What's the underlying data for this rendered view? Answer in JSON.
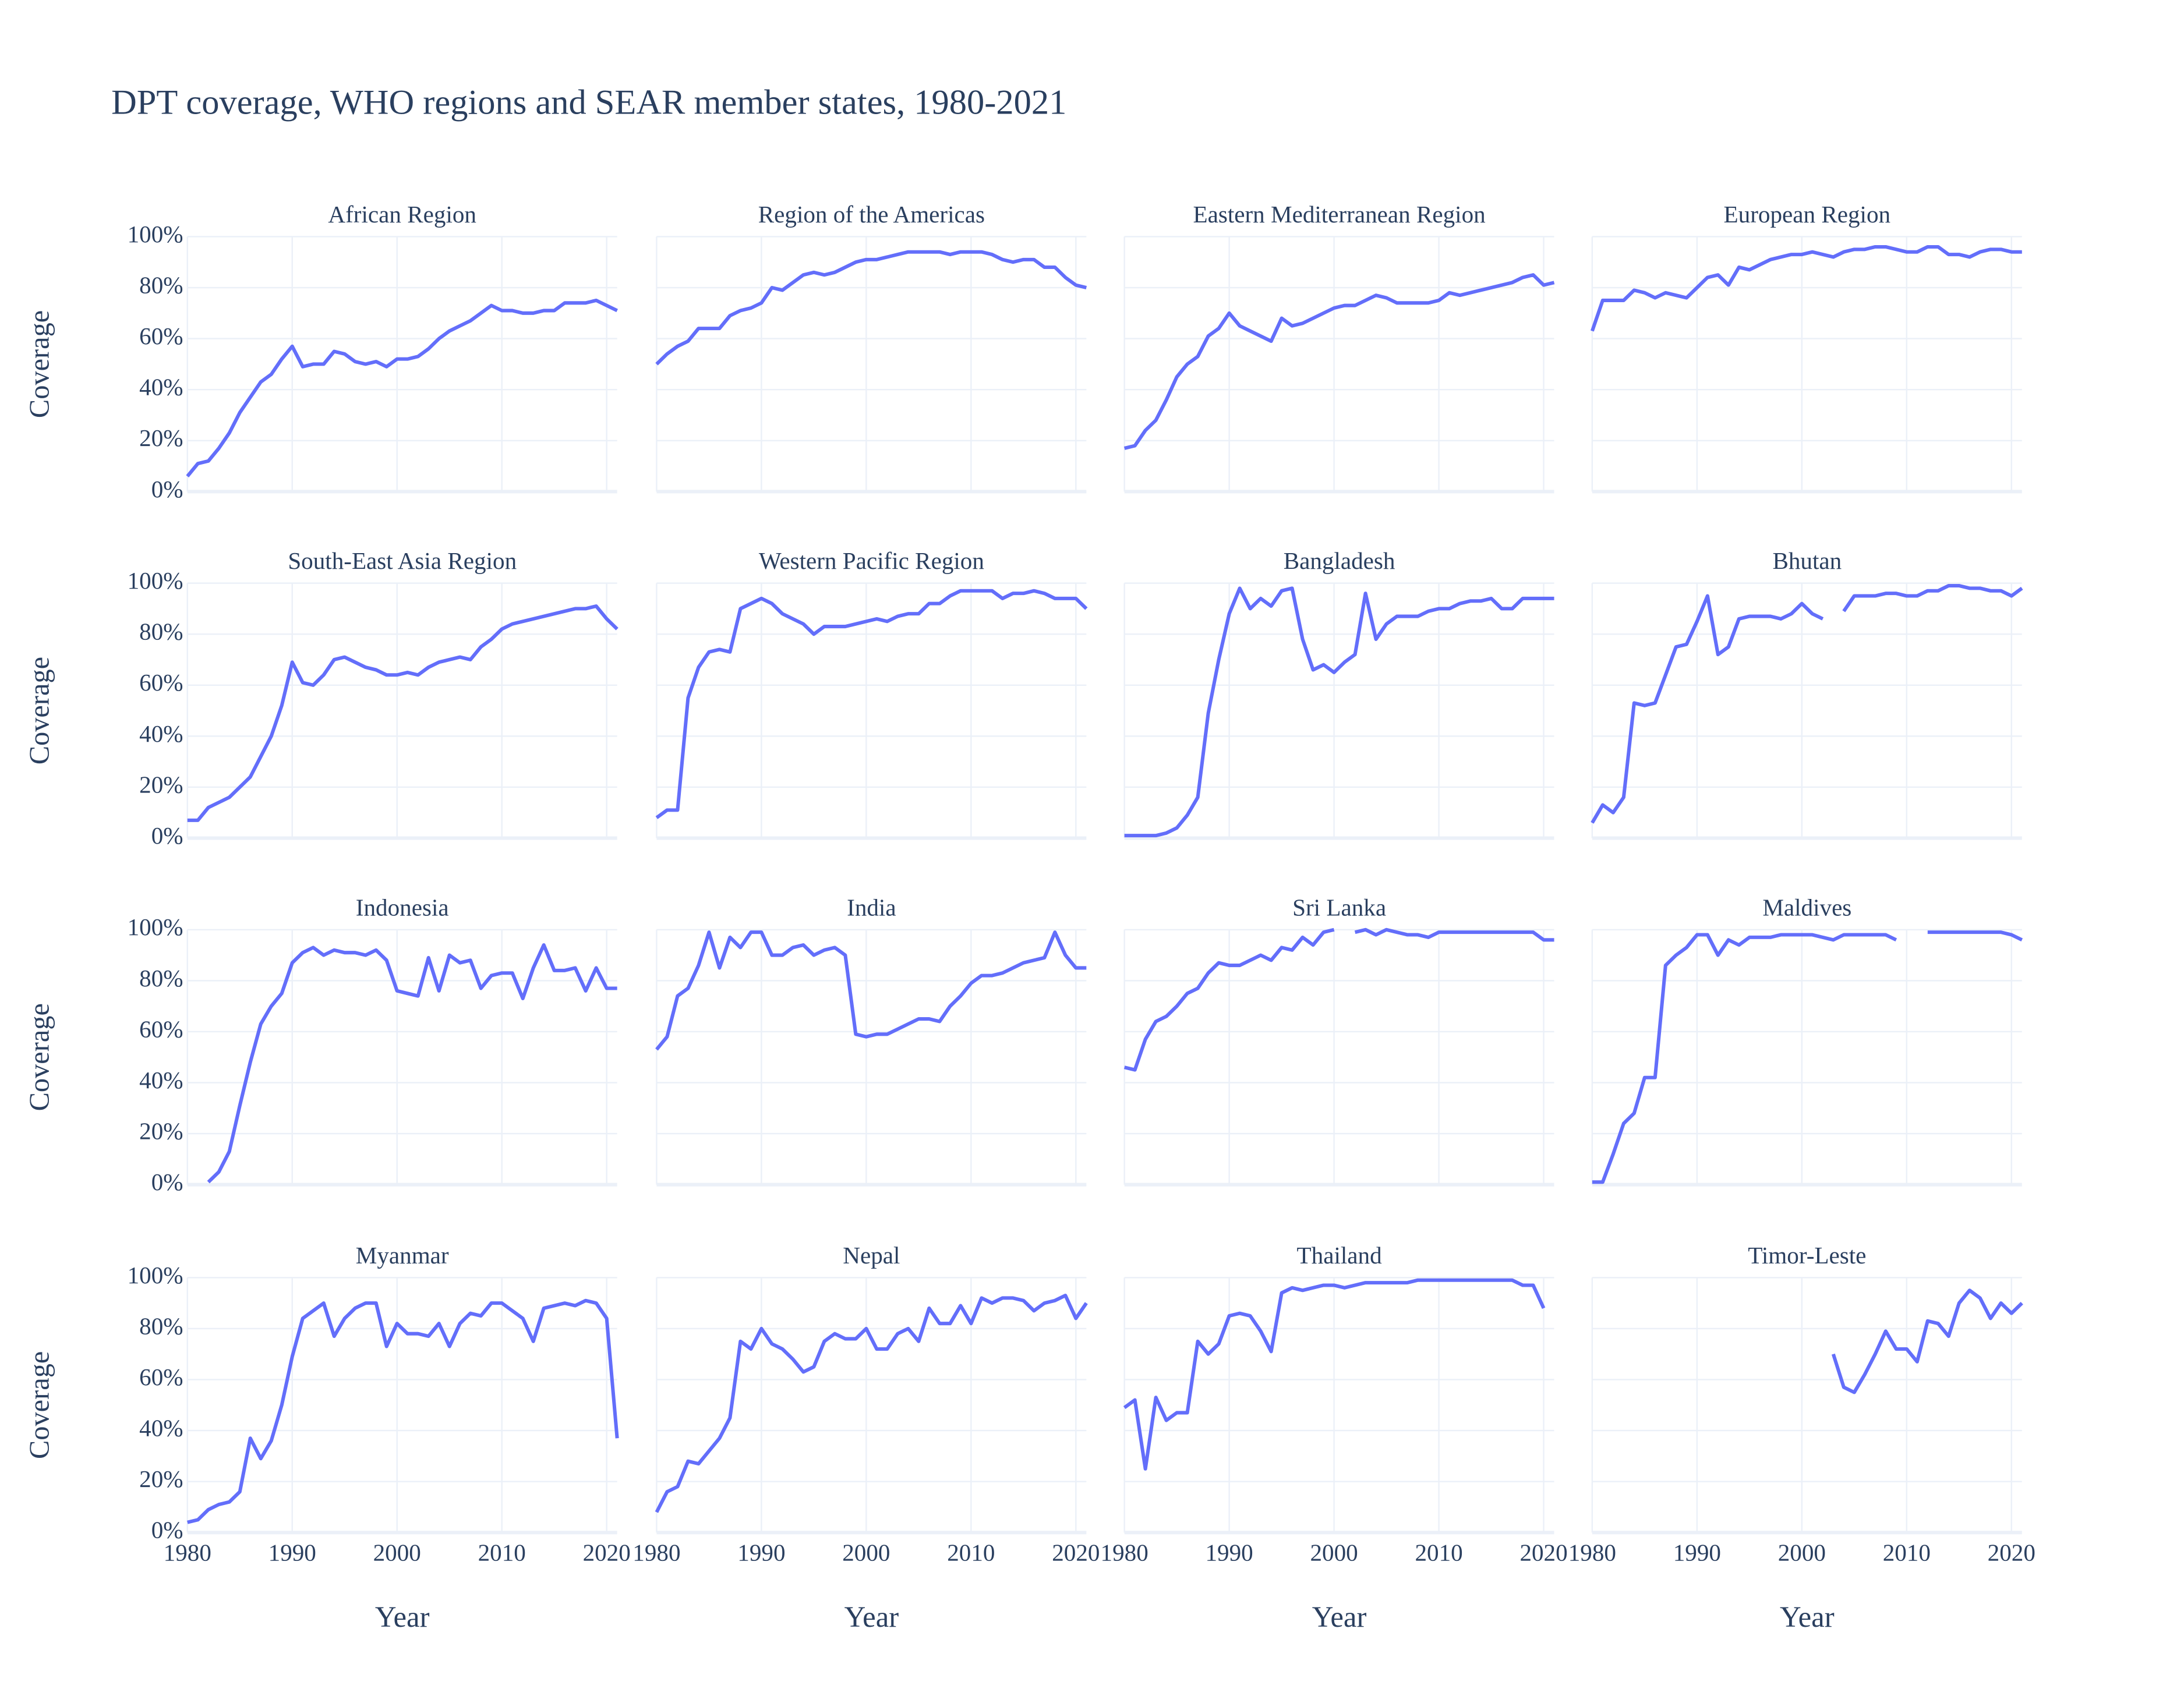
{
  "chart_data": {
    "type": "line",
    "title": "DPT coverage, WHO regions and SEAR member states, 1980-2021",
    "x_label": "Year",
    "y_label": "Coverage",
    "color": "#636efa",
    "grid": true,
    "xlim": [
      1980,
      2021
    ],
    "ylim": [
      0,
      100
    ],
    "xticks": [
      1980,
      1990,
      2000,
      2010,
      2020
    ],
    "yticks": [
      {
        "value": 0,
        "label": "0%"
      },
      {
        "value": 20,
        "label": "20%"
      },
      {
        "value": 40,
        "label": "40%"
      },
      {
        "value": 60,
        "label": "60%"
      },
      {
        "value": 80,
        "label": "80%"
      },
      {
        "value": 100,
        "label": "100%"
      }
    ],
    "x": [
      1980,
      1981,
      1982,
      1983,
      1984,
      1985,
      1986,
      1987,
      1988,
      1989,
      1990,
      1991,
      1992,
      1993,
      1994,
      1995,
      1996,
      1997,
      1998,
      1999,
      2000,
      2001,
      2002,
      2003,
      2004,
      2005,
      2006,
      2007,
      2008,
      2009,
      2010,
      2011,
      2012,
      2013,
      2014,
      2015,
      2016,
      2017,
      2018,
      2019,
      2020,
      2021
    ],
    "panels": [
      {
        "title": "African Region",
        "values": [
          6,
          11,
          12,
          17,
          23,
          31,
          37,
          43,
          46,
          52,
          57,
          49,
          50,
          50,
          55,
          54,
          51,
          50,
          51,
          49,
          52,
          52,
          53,
          56,
          60,
          63,
          65,
          67,
          70,
          73,
          71,
          71,
          70,
          70,
          71,
          71,
          74,
          74,
          74,
          75,
          73,
          71
        ]
      },
      {
        "title": "Region of the Americas",
        "values": [
          50,
          54,
          57,
          59,
          64,
          64,
          64,
          69,
          71,
          72,
          74,
          80,
          79,
          82,
          85,
          86,
          85,
          86,
          88,
          90,
          91,
          91,
          92,
          93,
          94,
          94,
          94,
          94,
          93,
          94,
          94,
          94,
          93,
          91,
          90,
          91,
          91,
          88,
          88,
          84,
          81,
          80
        ]
      },
      {
        "title": "Eastern Mediterranean Region",
        "values": [
          17,
          18,
          24,
          28,
          36,
          45,
          50,
          53,
          61,
          64,
          70,
          65,
          63,
          61,
          59,
          68,
          65,
          66,
          68,
          70,
          72,
          73,
          73,
          75,
          77,
          76,
          74,
          74,
          74,
          74,
          75,
          78,
          77,
          78,
          79,
          80,
          81,
          82,
          84,
          85,
          81,
          82
        ]
      },
      {
        "title": "European Region",
        "values": [
          63,
          75,
          75,
          75,
          79,
          78,
          76,
          78,
          77,
          76,
          80,
          84,
          85,
          81,
          88,
          87,
          89,
          91,
          92,
          93,
          93,
          94,
          93,
          92,
          94,
          95,
          95,
          96,
          96,
          95,
          94,
          94,
          96,
          96,
          93,
          93,
          92,
          94,
          95,
          95,
          94,
          94
        ]
      },
      {
        "title": "South-East Asia Region",
        "values": [
          7,
          7,
          12,
          14,
          16,
          20,
          24,
          32,
          40,
          52,
          69,
          61,
          60,
          64,
          70,
          71,
          69,
          67,
          66,
          64,
          64,
          65,
          64,
          67,
          69,
          70,
          71,
          70,
          75,
          78,
          82,
          84,
          85,
          86,
          87,
          88,
          89,
          90,
          90,
          91,
          86,
          82
        ]
      },
      {
        "title": "Western Pacific Region",
        "values": [
          8,
          11,
          11,
          55,
          67,
          73,
          74,
          73,
          90,
          92,
          94,
          92,
          88,
          86,
          84,
          80,
          83,
          83,
          83,
          84,
          85,
          86,
          85,
          87,
          88,
          88,
          92,
          92,
          95,
          97,
          97,
          97,
          97,
          94,
          96,
          96,
          97,
          96,
          94,
          94,
          94,
          90
        ]
      },
      {
        "title": "Bangladesh",
        "values": [
          1,
          1,
          1,
          1,
          2,
          4,
          9,
          16,
          49,
          70,
          88,
          98,
          90,
          94,
          91,
          97,
          98,
          78,
          66,
          68,
          65,
          69,
          72,
          96,
          78,
          84,
          87,
          87,
          87,
          89,
          90,
          90,
          92,
          93,
          93,
          94,
          90,
          90,
          94,
          94,
          94,
          94
        ]
      },
      {
        "title": "Bhutan",
        "values": [
          6,
          13,
          10,
          16,
          53,
          52,
          53,
          64,
          75,
          76,
          85,
          95,
          72,
          75,
          86,
          87,
          87,
          87,
          86,
          88,
          92,
          88,
          86,
          null,
          89,
          95,
          95,
          95,
          96,
          96,
          95,
          95,
          97,
          97,
          99,
          99,
          98,
          98,
          97,
          97,
          95,
          98
        ]
      },
      {
        "title": "Indonesia",
        "values": [
          null,
          null,
          1,
          5,
          13,
          31,
          48,
          63,
          70,
          75,
          87,
          91,
          93,
          90,
          92,
          91,
          91,
          90,
          92,
          88,
          76,
          75,
          74,
          89,
          76,
          90,
          87,
          88,
          77,
          82,
          83,
          83,
          73,
          85,
          94,
          84,
          84,
          85,
          76,
          85,
          77,
          77
        ]
      },
      {
        "title": "India",
        "values": [
          53,
          58,
          74,
          77,
          86,
          99,
          85,
          97,
          93,
          99,
          99,
          90,
          90,
          93,
          94,
          90,
          92,
          93,
          90,
          59,
          58,
          59,
          59,
          61,
          63,
          65,
          65,
          64,
          70,
          74,
          79,
          82,
          82,
          83,
          85,
          87,
          88,
          89,
          99,
          90,
          85,
          85
        ]
      },
      {
        "title": "Sri Lanka",
        "values": [
          46,
          45,
          57,
          64,
          66,
          70,
          75,
          77,
          83,
          87,
          86,
          86,
          88,
          90,
          88,
          93,
          92,
          97,
          94,
          99,
          100,
          null,
          99,
          100,
          98,
          100,
          99,
          98,
          98,
          97,
          99,
          99,
          99,
          99,
          99,
          99,
          99,
          99,
          99,
          99,
          96,
          96
        ]
      },
      {
        "title": "Maldives",
        "values": [
          1,
          1,
          12,
          24,
          28,
          42,
          42,
          86,
          90,
          93,
          98,
          98,
          90,
          96,
          94,
          97,
          97,
          97,
          98,
          98,
          98,
          98,
          97,
          96,
          98,
          98,
          98,
          98,
          98,
          96,
          null,
          null,
          99,
          99,
          99,
          99,
          99,
          99,
          99,
          99,
          98,
          96
        ]
      },
      {
        "title": "Myanmar",
        "values": [
          4,
          5,
          9,
          11,
          12,
          16,
          37,
          29,
          36,
          50,
          69,
          84,
          87,
          90,
          77,
          84,
          88,
          90,
          90,
          73,
          82,
          78,
          78,
          77,
          82,
          73,
          82,
          86,
          85,
          90,
          90,
          87,
          84,
          75,
          88,
          89,
          90,
          89,
          91,
          90,
          84,
          37
        ]
      },
      {
        "title": "Nepal",
        "values": [
          8,
          16,
          18,
          28,
          27,
          32,
          37,
          45,
          75,
          72,
          80,
          74,
          72,
          68,
          63,
          65,
          75,
          78,
          76,
          76,
          80,
          72,
          72,
          78,
          80,
          75,
          88,
          82,
          82,
          89,
          82,
          92,
          90,
          92,
          92,
          91,
          87,
          90,
          91,
          93,
          84,
          90
        ]
      },
      {
        "title": "Thailand",
        "values": [
          49,
          52,
          25,
          53,
          44,
          47,
          47,
          75,
          70,
          74,
          85,
          86,
          85,
          79,
          71,
          94,
          96,
          95,
          96,
          97,
          97,
          96,
          97,
          98,
          98,
          98,
          98,
          98,
          99,
          99,
          99,
          99,
          99,
          99,
          99,
          99,
          99,
          99,
          97,
          97,
          88,
          null
        ]
      },
      {
        "title": "Timor-Leste",
        "values": [
          null,
          null,
          null,
          null,
          null,
          null,
          null,
          null,
          null,
          null,
          null,
          null,
          null,
          null,
          null,
          null,
          null,
          null,
          null,
          null,
          null,
          null,
          null,
          70,
          57,
          55,
          62,
          70,
          79,
          72,
          72,
          67,
          83,
          82,
          77,
          90,
          95,
          92,
          84,
          90,
          86,
          90
        ]
      }
    ]
  }
}
